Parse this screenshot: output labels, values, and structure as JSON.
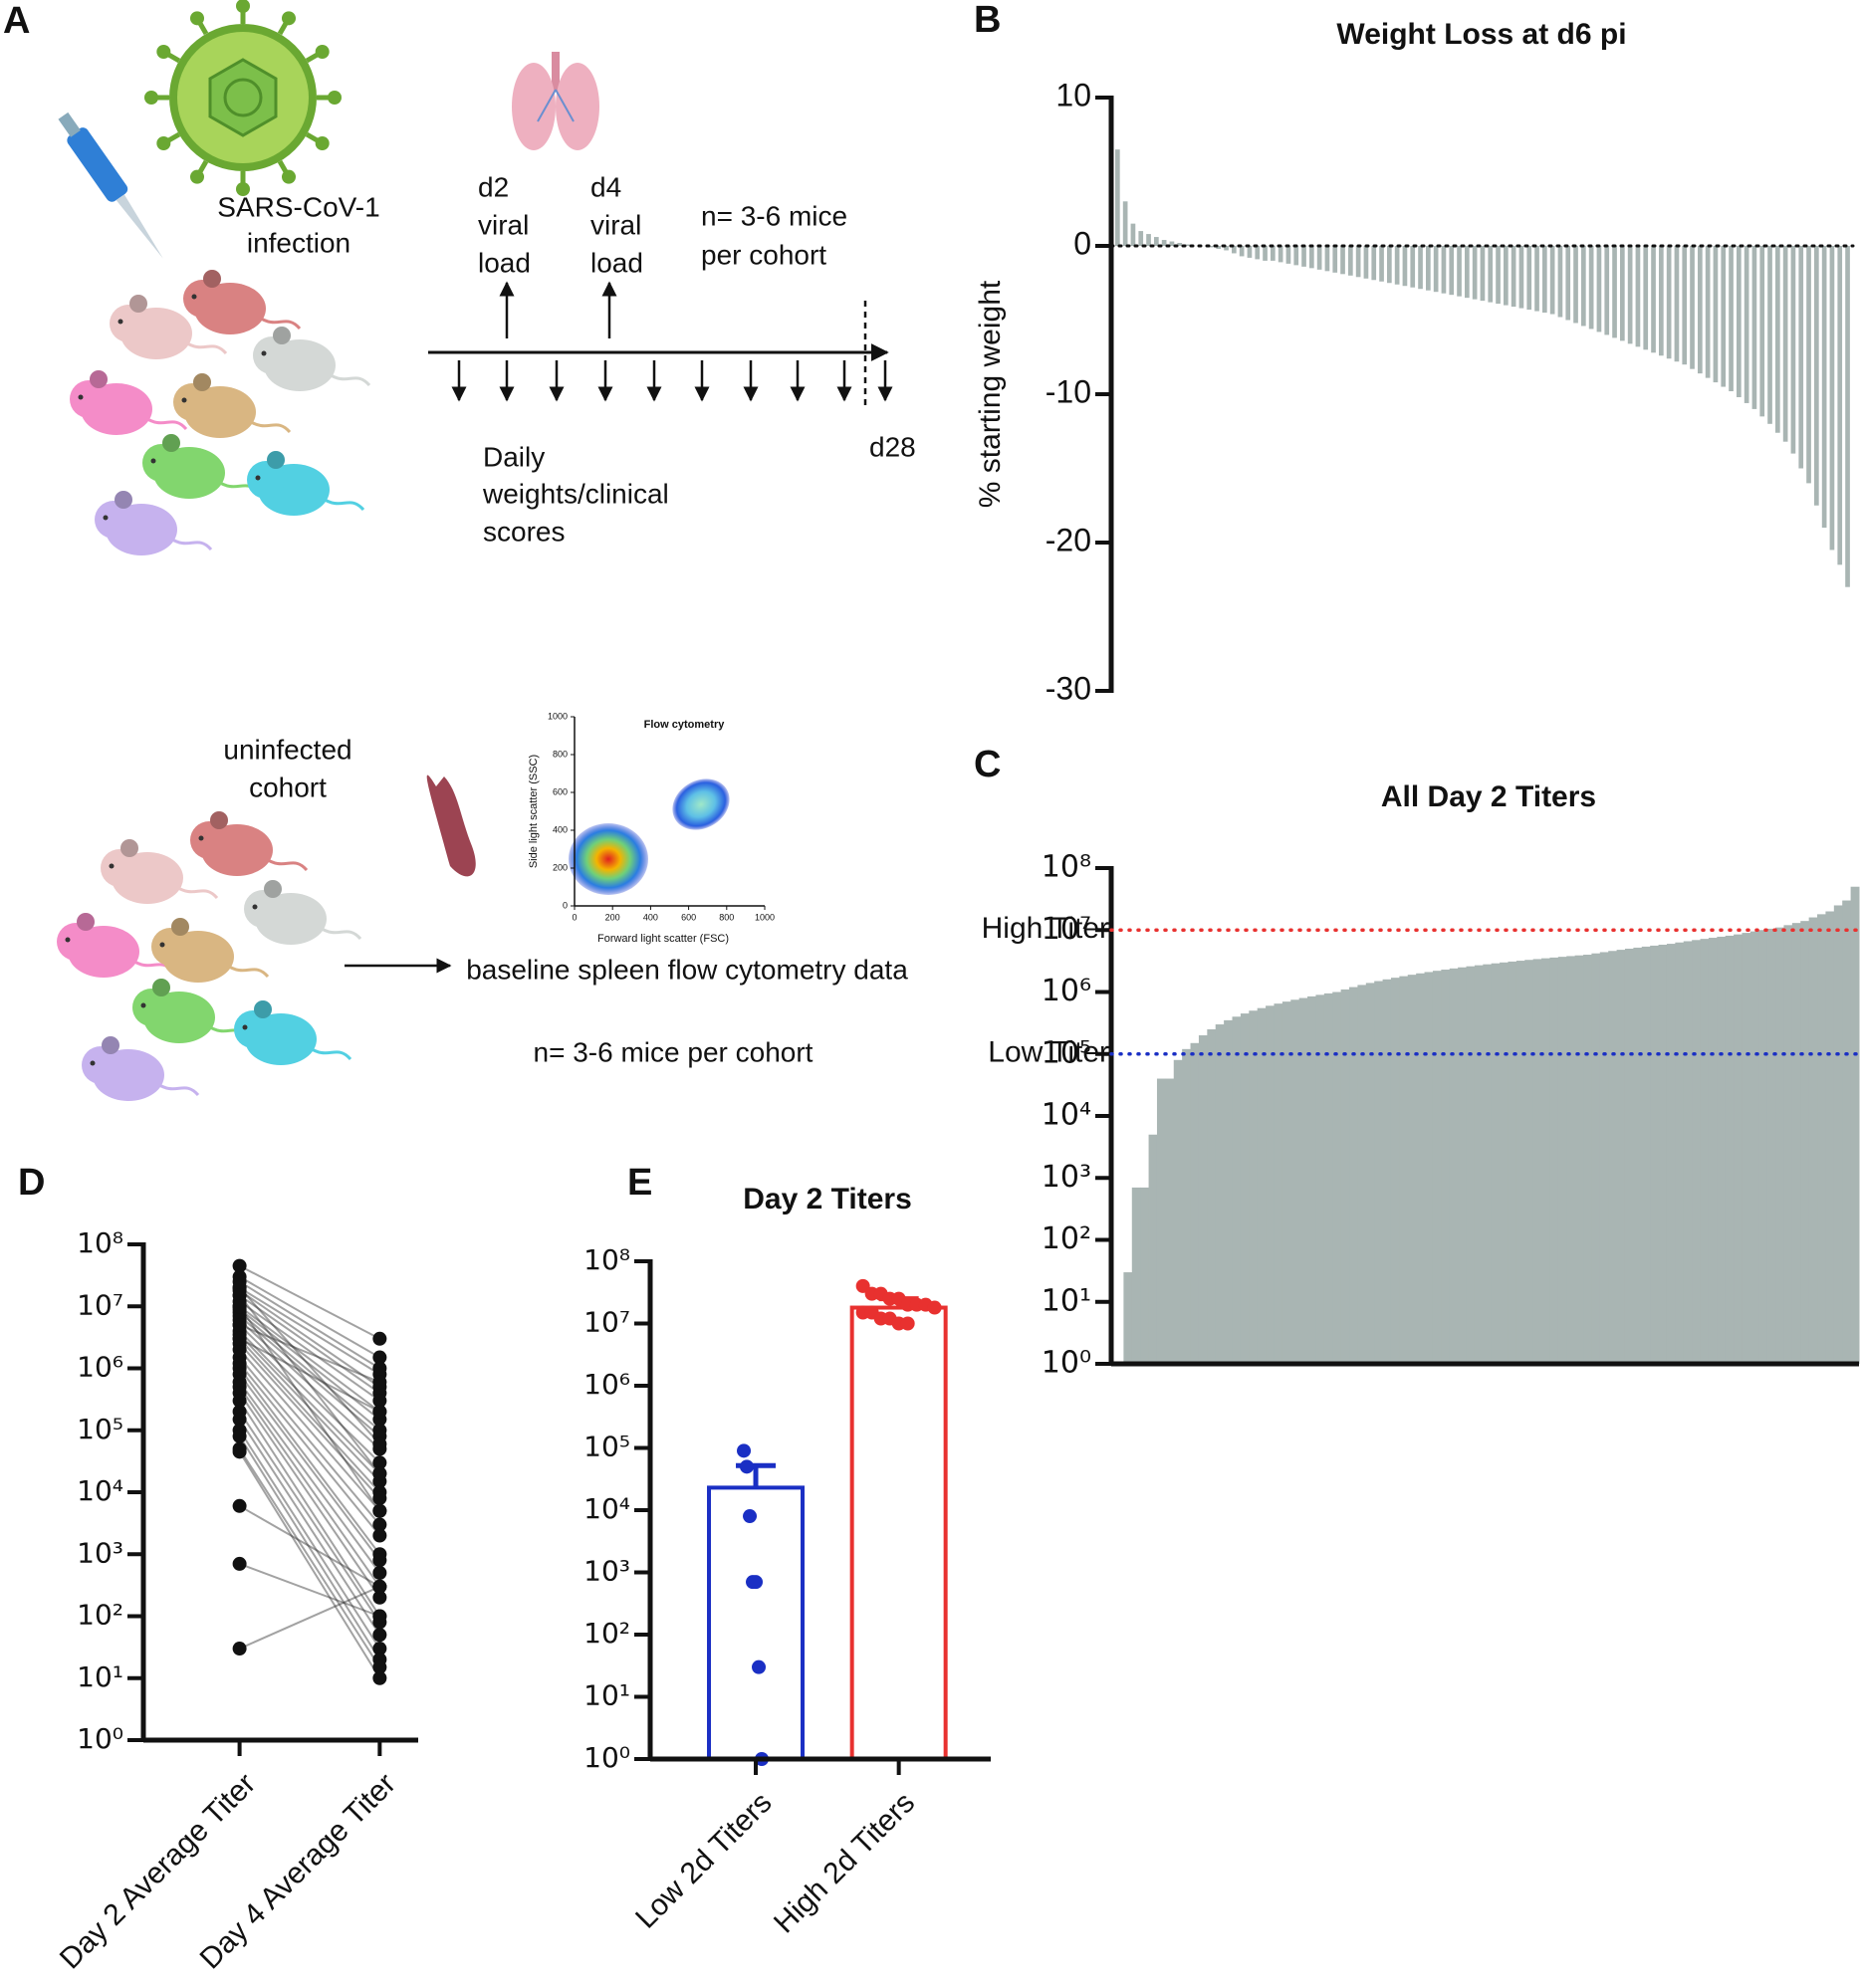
{
  "figure": {
    "panel_a": {
      "label": "A",
      "infection": [
        "SARS-CoV-1",
        "infection"
      ],
      "timepoints": [
        [
          "d2",
          "viral",
          "load"
        ],
        [
          "d4",
          "viral",
          "load"
        ]
      ],
      "cohort_size": [
        "n= 3-6 mice",
        "per cohort"
      ],
      "daily": [
        "Daily",
        "weights/clinical",
        "scores"
      ],
      "end": "d28",
      "uninfected": [
        "uninfected",
        "cohort"
      ],
      "baseline": "baseline spleen flow cytometry data",
      "cohort_size_2": "n= 3-6 mice per cohort",
      "flow": {
        "title": "Flow cytometry",
        "xlabel": "Forward light scatter (FSC)",
        "ylabel": "Side light scatter (SSC)",
        "xticks": [
          0,
          200,
          400,
          600,
          800,
          1000
        ],
        "yticks": [
          0,
          200,
          400,
          600,
          800,
          1000
        ]
      }
    }
  },
  "chart_data": [
    {
      "panel": "B",
      "type": "bar",
      "title": "Weight Loss at d6 pi",
      "ylabel": "% starting weight",
      "color": "#a9b5b3",
      "ylim": [
        -30,
        10
      ],
      "yticks": [
        -30,
        -20,
        -10,
        0,
        10
      ],
      "zero_line": "dotted",
      "values": [
        6.5,
        3,
        1.5,
        1,
        0.8,
        0.6,
        0.4,
        0.3,
        0.2,
        0.1,
        0,
        0,
        -0.1,
        -0.2,
        -0.3,
        -0.5,
        -0.7,
        -0.8,
        -0.9,
        -1.0,
        -1.0,
        -1.1,
        -1.2,
        -1.3,
        -1.4,
        -1.5,
        -1.6,
        -1.7,
        -1.8,
        -1.9,
        -2.0,
        -2.1,
        -2.2,
        -2.3,
        -2.4,
        -2.5,
        -2.6,
        -2.7,
        -2.8,
        -2.9,
        -3.0,
        -3.1,
        -3.2,
        -3.3,
        -3.4,
        -3.5,
        -3.6,
        -3.7,
        -3.8,
        -3.9,
        -4.0,
        -4.1,
        -4.2,
        -4.3,
        -4.4,
        -4.5,
        -4.6,
        -4.8,
        -5.0,
        -5.2,
        -5.4,
        -5.6,
        -5.8,
        -6.0,
        -6.2,
        -6.4,
        -6.6,
        -6.8,
        -7.0,
        -7.2,
        -7.4,
        -7.6,
        -7.8,
        -8.0,
        -8.3,
        -8.6,
        -8.9,
        -9.2,
        -9.5,
        -9.8,
        -10.2,
        -10.6,
        -11.0,
        -11.5,
        -12.0,
        -12.6,
        -13.2,
        -14.0,
        -15.0,
        -16.0,
        -17.5,
        -19.0,
        -20.5,
        -21.5,
        -23.0
      ]
    },
    {
      "panel": "C",
      "type": "bar",
      "title": "All Day 2 Titers",
      "color": "#a9b5b3",
      "log_y": true,
      "ylim": [
        1,
        100000000
      ],
      "yticks": [
        {
          "value": 1,
          "label": "10⁰"
        },
        {
          "value": 10,
          "label": "10¹"
        },
        {
          "value": 100,
          "label": "10²"
        },
        {
          "value": 1000,
          "label": "10³"
        },
        {
          "value": 10000,
          "label": "10⁴"
        },
        {
          "value": 100000,
          "label": "10⁵"
        },
        {
          "value": 1000000,
          "label": "10⁶"
        },
        {
          "value": 10000000,
          "label": "10⁷"
        },
        {
          "value": 100000000,
          "label": "10⁸"
        }
      ],
      "reference_lines": [
        {
          "label": "High Titer",
          "value": 10000000,
          "color": "#e8312f"
        },
        {
          "label": "Low Titer",
          "value": 100000,
          "color": "#1a2fc4"
        }
      ],
      "values": [
        1,
        30,
        700,
        700,
        5000,
        40000,
        40000,
        80000,
        120000,
        150000,
        200000,
        250000,
        300000,
        350000,
        400000,
        450000,
        500000,
        550000,
        600000,
        650000,
        700000,
        750000,
        800000,
        850000,
        900000,
        950000,
        1000000.0,
        1100000.0,
        1200000.0,
        1300000.0,
        1400000.0,
        1500000.0,
        1600000.0,
        1700000.0,
        1800000.0,
        1900000.0,
        2000000.0,
        2100000.0,
        2200000.0,
        2300000.0,
        2400000.0,
        2500000.0,
        2600000.0,
        2700000.0,
        2800000.0,
        2900000.0,
        3000000.0,
        3100000.0,
        3200000.0,
        3300000.0,
        3400000.0,
        3500000.0,
        3600000.0,
        3700000.0,
        3800000.0,
        3900000.0,
        4000000.0,
        4200000.0,
        4400000.0,
        4600000.0,
        4800000.0,
        5000000.0,
        5200000.0,
        5400000.0,
        5600000.0,
        5800000.0,
        6000000.0,
        6300000.0,
        6600000.0,
        6900000.0,
        7200000.0,
        7500000.0,
        7800000.0,
        8100000.0,
        8500000.0,
        9000000.0,
        9500000.0,
        10000000.0,
        10500000.0,
        11000000.0,
        12000000.0,
        13000000.0,
        14000000.0,
        16000000.0,
        18000000.0,
        20000000.0,
        25000000.0,
        30000000.0,
        50000000.0
      ]
    },
    {
      "panel": "D",
      "type": "paired",
      "log_y": true,
      "ylim": [
        1,
        100000000
      ],
      "color": "#111111",
      "yticks": [
        {
          "value": 1,
          "label": "10⁰"
        },
        {
          "value": 10,
          "label": "10¹"
        },
        {
          "value": 100,
          "label": "10²"
        },
        {
          "value": 1000,
          "label": "10³"
        },
        {
          "value": 10000,
          "label": "10⁴"
        },
        {
          "value": 100000,
          "label": "10⁵"
        },
        {
          "value": 1000000,
          "label": "10⁶"
        },
        {
          "value": 10000000,
          "label": "10⁷"
        },
        {
          "value": 100000000,
          "label": "10⁸"
        }
      ],
      "categories": [
        "Day 2 Average Titer",
        "Day 4 Average Titer"
      ],
      "values": [
        [
          45000000.0,
          3000000.0
        ],
        [
          30000000.0,
          1500000.0
        ],
        [
          25000000.0,
          1000000.0
        ],
        [
          20000000.0,
          800000.0
        ],
        [
          18000000.0,
          500000.0
        ],
        [
          15000000.0,
          400000.0
        ],
        [
          12000000.0,
          300000.0
        ],
        [
          10000000.0,
          200000.0
        ],
        [
          9000000.0,
          150000.0
        ],
        [
          8000000.0,
          100000.0
        ],
        [
          7000000.0,
          80000.0
        ],
        [
          6000000.0,
          50000.0
        ],
        [
          5000000.0,
          30000.0
        ],
        [
          4000000.0,
          20000.0
        ],
        [
          3500000.0,
          15000.0
        ],
        [
          3000000.0,
          10000.0
        ],
        [
          2500000.0,
          8000.0
        ],
        [
          2000000.0,
          5000.0
        ],
        [
          1500000.0,
          3000.0
        ],
        [
          1200000.0,
          2000.0
        ],
        [
          1000000.0,
          1000.0
        ],
        [
          800000.0,
          800
        ],
        [
          600000.0,
          500
        ],
        [
          500000.0,
          300
        ],
        [
          400000.0,
          200
        ],
        [
          300000.0,
          100
        ],
        [
          200000.0,
          80
        ],
        [
          150000.0,
          50
        ],
        [
          100000.0,
          30
        ],
        [
          80000.0,
          20
        ],
        [
          50000.0,
          15
        ],
        [
          45000.0,
          10
        ],
        [
          20000000.0,
          60000.0
        ],
        [
          15000000.0,
          20000.0
        ],
        [
          10000000.0,
          5000.0
        ],
        [
          6000.0,
          300
        ],
        [
          700,
          100
        ],
        [
          30,
          300
        ],
        [
          3000000.0,
          200000.0
        ],
        [
          5000000.0,
          600000.0
        ]
      ]
    },
    {
      "panel": "E",
      "type": "bar_scatter",
      "title": "Day 2 Titers",
      "log_y": true,
      "ylim": [
        1,
        100000000
      ],
      "yticks": [
        {
          "value": 1,
          "label": "10⁰"
        },
        {
          "value": 10,
          "label": "10¹"
        },
        {
          "value": 100,
          "label": "10²"
        },
        {
          "value": 1000,
          "label": "10³"
        },
        {
          "value": 10000,
          "label": "10⁴"
        },
        {
          "value": 100000,
          "label": "10⁵"
        },
        {
          "value": 1000000,
          "label": "10⁶"
        },
        {
          "value": 10000000,
          "label": "10⁷"
        },
        {
          "value": 100000000,
          "label": "10⁸"
        }
      ],
      "categories": [
        "Low 2d Titers",
        "High 2d Titers"
      ],
      "colors": [
        "#1a2fc4",
        "#e8312f"
      ],
      "values": [
        23000,
        18000000
      ],
      "errors": [
        29000,
        7000000
      ],
      "points": [
        [
          90000,
          50000,
          8000,
          700,
          700,
          30,
          1
        ],
        [
          40000000.0,
          30000000.0,
          30000000.0,
          25000000.0,
          25000000.0,
          20000000.0,
          20000000.0,
          20000000.0,
          18000000.0,
          15000000.0,
          15000000.0,
          12000000.0,
          12000000.0,
          10000000.0,
          10000000.0
        ]
      ]
    }
  ]
}
